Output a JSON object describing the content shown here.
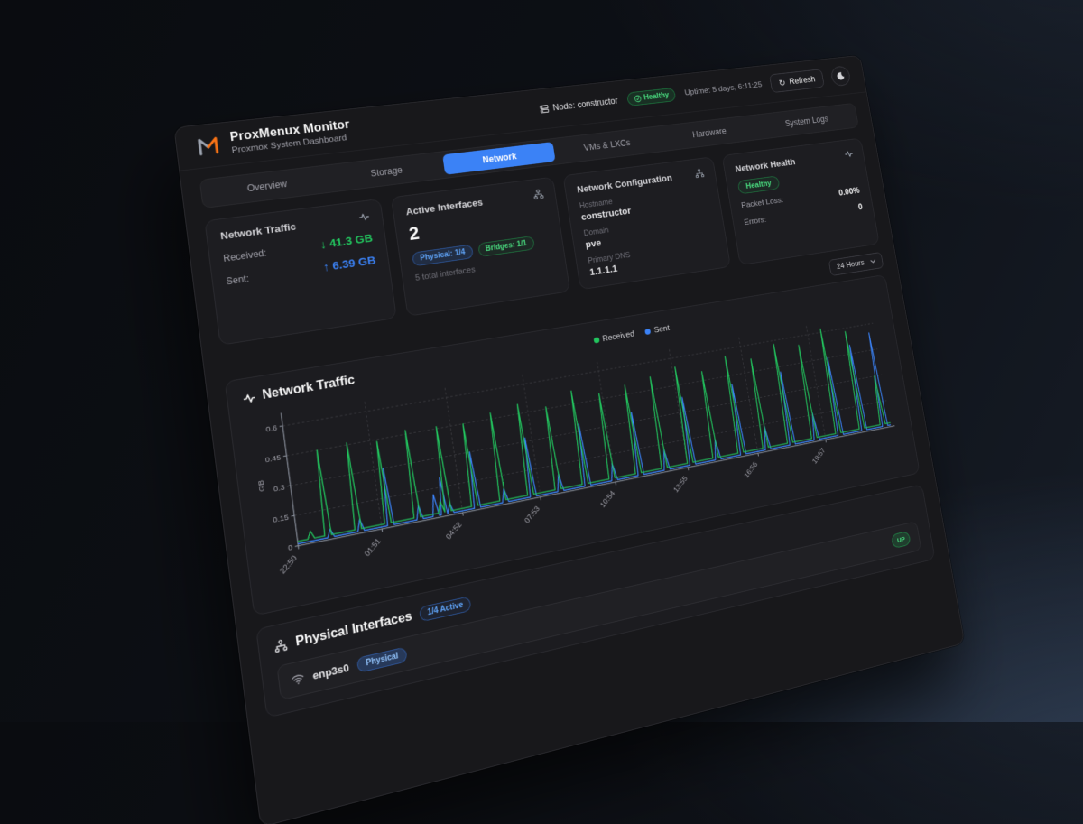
{
  "colors": {
    "accent": "#3b82f6",
    "green": "#22c55e",
    "orange": "#f97316"
  },
  "titlebar": {
    "node": "Node: constructor",
    "health": "Healthy",
    "uptime": "Uptime: 5 days, 6:11:25",
    "refresh": "Refresh"
  },
  "brand": {
    "title": "ProxMenux Monitor",
    "subtitle": "Proxmox System Dashboard"
  },
  "tabs": [
    {
      "label": "Overview",
      "active": false
    },
    {
      "label": "Storage",
      "active": false
    },
    {
      "label": "Network",
      "active": true
    },
    {
      "label": "VMs & LXCs",
      "active": false
    },
    {
      "label": "Hardware",
      "active": false
    },
    {
      "label": "System Logs",
      "active": false
    }
  ],
  "cards": {
    "traffic": {
      "title": "Network Traffic",
      "received_label": "Received:",
      "received_arrow": "↓",
      "received_value": "41.3 GB",
      "sent_label": "Sent:",
      "sent_arrow": "↑",
      "sent_value": "6.39 GB"
    },
    "interfaces": {
      "title": "Active Interfaces",
      "count": "2",
      "physical_badge": "Physical: 1/4",
      "bridges_badge": "Bridges: 1/1",
      "total": "5 total interfaces"
    },
    "config": {
      "title": "Network Configuration",
      "fields": [
        {
          "label": "Hostname",
          "value": "constructor"
        },
        {
          "label": "Domain",
          "value": "pve"
        },
        {
          "label": "Primary DNS",
          "value": "1.1.1.1"
        }
      ]
    },
    "health": {
      "title": "Network Health",
      "status": "Healthy",
      "rows": [
        {
          "label": "Packet Loss:",
          "value": "0.00%"
        },
        {
          "label": "Errors:",
          "value": "0"
        }
      ]
    }
  },
  "range": {
    "value": "24 Hours"
  },
  "chart": {
    "type": "line",
    "title": "Network Traffic",
    "ylabel": "GB",
    "ymax": 0.65,
    "yticks": [
      0,
      0.15,
      0.3,
      0.45,
      0.6
    ],
    "xticks": [
      "22:50",
      "01:51",
      "04:52",
      "07:53",
      "10:54",
      "13:55",
      "16:56",
      "19:57"
    ],
    "legend": [
      {
        "label": "Received",
        "color": "#22c55e"
      },
      {
        "label": "Sent",
        "color": "#3b82f6"
      }
    ],
    "baseline": {
      "received": 0.022,
      "sent": 0.01
    },
    "spikes": [
      [
        0.02,
        0.06,
        0
      ],
      [
        0.045,
        0.45,
        0.05
      ],
      [
        0.09,
        0.46,
        0.07
      ],
      [
        0.135,
        0.44,
        0.3
      ],
      [
        0.18,
        0.47,
        0.08
      ],
      [
        0.205,
        0,
        0.12
      ],
      [
        0.218,
        0.08,
        0.2
      ],
      [
        0.228,
        0.46,
        0.06
      ],
      [
        0.27,
        0.45,
        0.3
      ],
      [
        0.315,
        0.48,
        0.08
      ],
      [
        0.36,
        0.5,
        0.32
      ],
      [
        0.405,
        0.46,
        0.1
      ],
      [
        0.45,
        0.52,
        0.34
      ],
      [
        0.495,
        0.48,
        0.1
      ],
      [
        0.54,
        0.5,
        0.35
      ],
      [
        0.585,
        0.52,
        0.12
      ],
      [
        0.63,
        0.55,
        0.38
      ],
      [
        0.675,
        0.5,
        0.12
      ],
      [
        0.72,
        0.56,
        0.4
      ],
      [
        0.765,
        0.52,
        0.14
      ],
      [
        0.81,
        0.58,
        0.42
      ],
      [
        0.855,
        0.55,
        0.16
      ],
      [
        0.9,
        0.62,
        0.45
      ],
      [
        0.945,
        0.58,
        0.5
      ],
      [
        0.985,
        0.3,
        0.55
      ]
    ]
  },
  "interfaces_section": {
    "title": "Physical Interfaces",
    "active_badge": "1/4 Active",
    "rows": [
      {
        "name": "enp3s0",
        "type": "Physical",
        "status": "UP"
      }
    ]
  }
}
